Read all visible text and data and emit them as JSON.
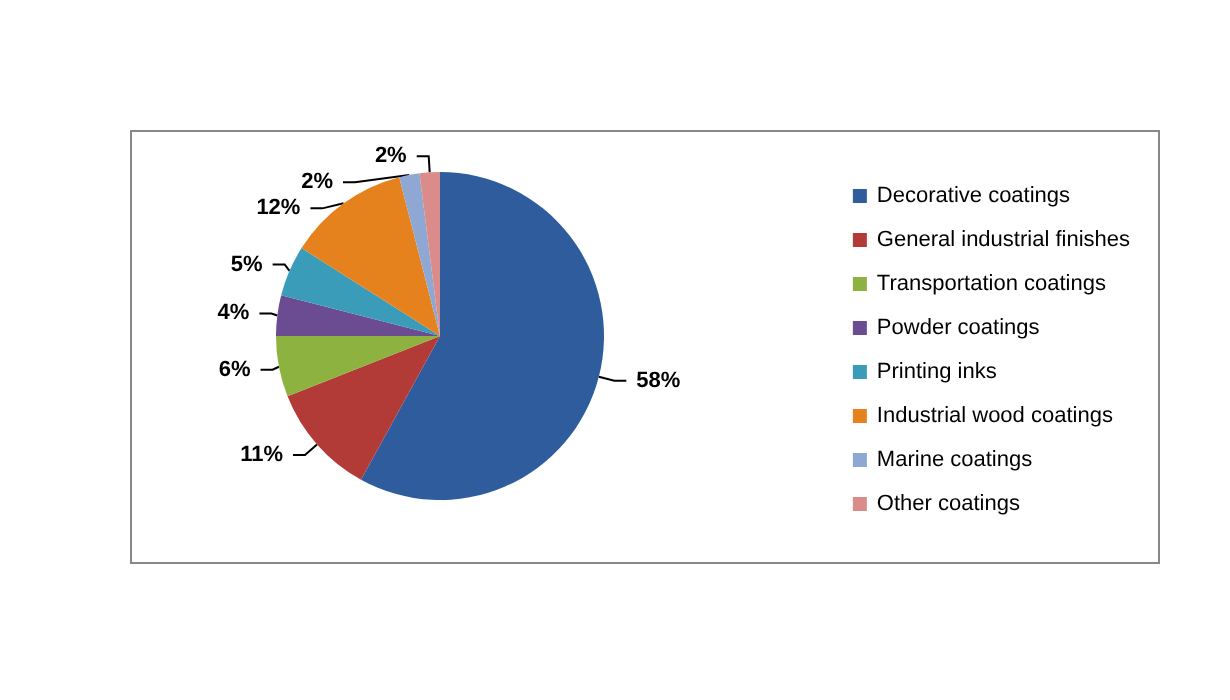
{
  "chart_data": {
    "type": "pie",
    "categories": [
      "Decorative coatings",
      "General industrial finishes",
      "Transportation coatings",
      "Powder coatings",
      "Printing inks",
      "Industrial wood coatings",
      "Marine coatings",
      "Other coatings"
    ],
    "values": [
      58,
      11,
      6,
      4,
      5,
      12,
      2,
      2
    ],
    "colors": [
      "#2e5c9c",
      "#b23b38",
      "#8db23f",
      "#6b4b91",
      "#3a9cb8",
      "#e6821e",
      "#8ea8d3",
      "#d98c8a"
    ],
    "value_labels": [
      "58%",
      "11%",
      "6%",
      "4%",
      "5%",
      "12%",
      "2%",
      "2%"
    ],
    "legend": "right"
  }
}
